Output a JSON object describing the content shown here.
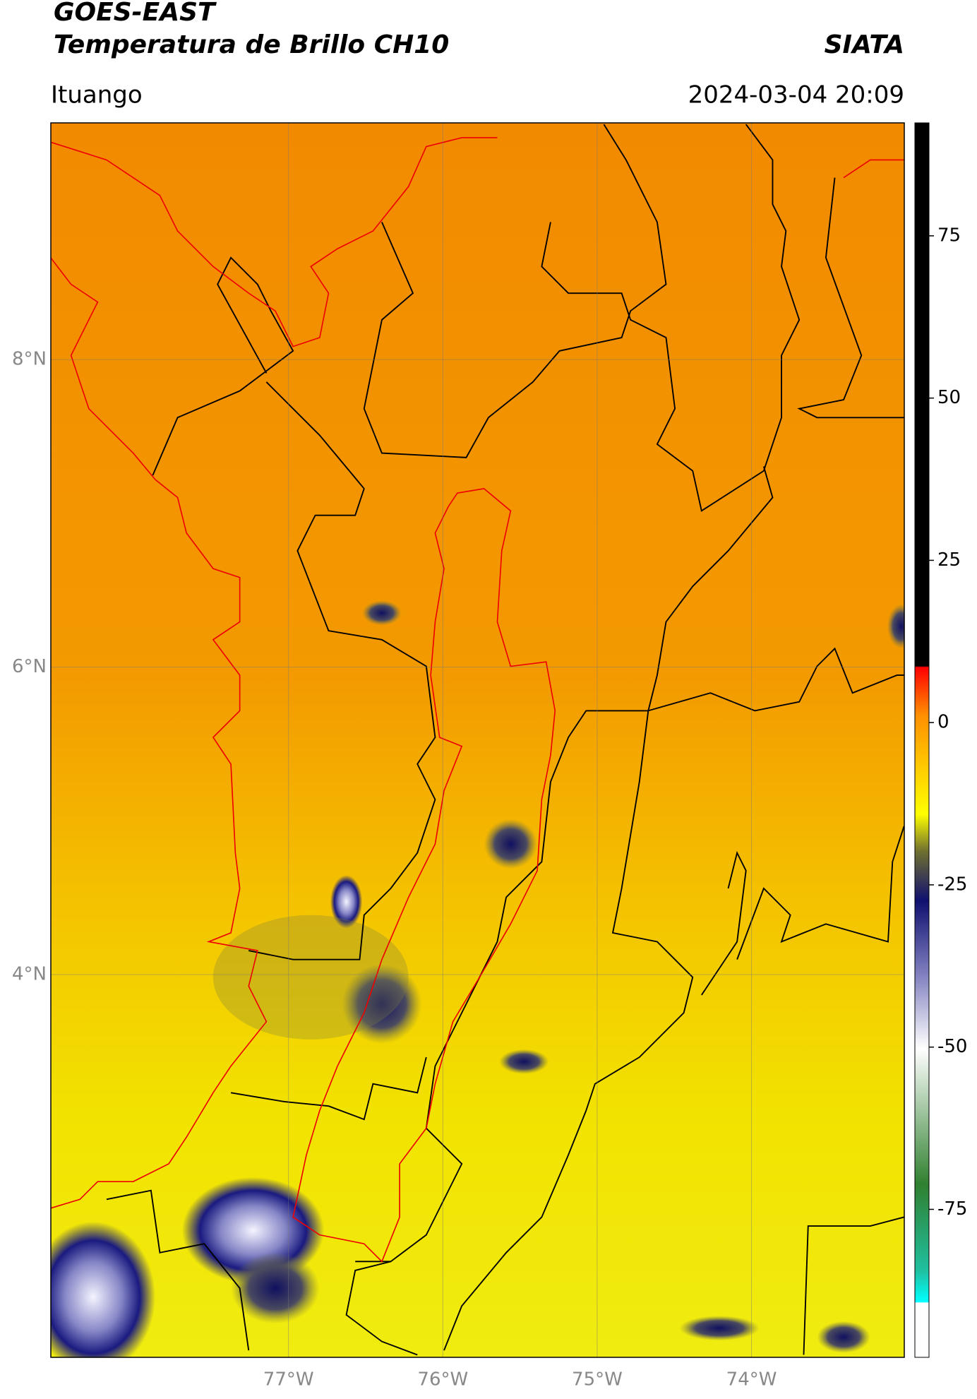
{
  "chart_data": {
    "type": "map",
    "title": "GOES-EAST",
    "subtitle": "Temperatura de Brillo CH10",
    "source": "SIATA",
    "region": "Ituango",
    "timestamp": "2024-03-04 20:09",
    "xlim": [
      -78.54,
      -73.01
    ],
    "ylim": [
      1.51,
      9.54
    ],
    "xticks": [
      {
        "value": -77,
        "label": "77°W"
      },
      {
        "value": -76,
        "label": "76°W"
      },
      {
        "value": -75,
        "label": "75°W"
      },
      {
        "value": -74,
        "label": "74°W"
      }
    ],
    "yticks": [
      {
        "value": 4,
        "label": "4°N"
      },
      {
        "value": 6,
        "label": "6°N"
      },
      {
        "value": 8,
        "label": "8°N"
      }
    ],
    "grid": true,
    "colorbar": {
      "lim": [
        -97.8,
        92.4
      ],
      "ticks": [
        -75,
        -50,
        -25,
        0,
        25,
        50,
        75
      ]
    }
  }
}
